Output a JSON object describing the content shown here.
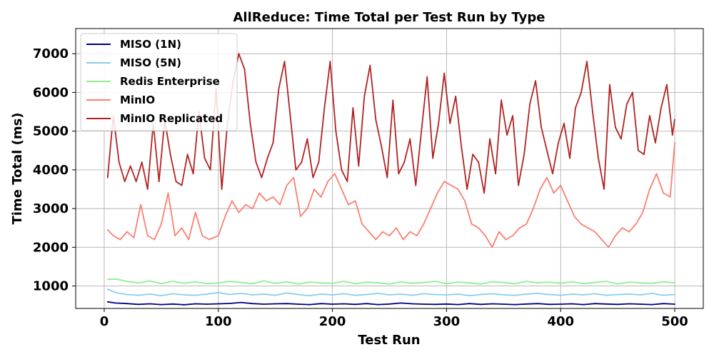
{
  "chart_data": {
    "type": "line",
    "title": "AllReduce: Time Total per Test Run by Type",
    "xlabel": "Test Run",
    "ylabel": "Time Total (ms)",
    "xlim": [
      -25,
      525
    ],
    "ylim": [
      420,
      7650
    ],
    "xticks": [
      0,
      100,
      200,
      300,
      400,
      500
    ],
    "yticks": [
      1000,
      2000,
      3000,
      4000,
      5000,
      6000,
      7000
    ],
    "x_tick_labels": [
      "0",
      "100",
      "200",
      "300",
      "400",
      "500"
    ],
    "y_tick_labels": [
      "1000",
      "2000",
      "3000",
      "4000",
      "5000",
      "6000",
      "7000"
    ],
    "grid": true,
    "legend_position": "top-left",
    "series": [
      {
        "name": "MISO (1N)",
        "color": "#000080",
        "x": [
          3,
          10,
          20,
          30,
          40,
          50,
          60,
          70,
          80,
          90,
          100,
          110,
          120,
          130,
          140,
          150,
          160,
          170,
          180,
          190,
          200,
          210,
          220,
          230,
          240,
          250,
          260,
          270,
          280,
          290,
          300,
          310,
          320,
          330,
          340,
          350,
          360,
          370,
          380,
          390,
          400,
          410,
          420,
          430,
          440,
          450,
          460,
          470,
          480,
          490,
          500
        ],
        "values": [
          590,
          560,
          545,
          525,
          540,
          520,
          535,
          515,
          540,
          530,
          540,
          550,
          575,
          545,
          530,
          540,
          545,
          530,
          520,
          545,
          530,
          540,
          525,
          545,
          520,
          535,
          560,
          540,
          530,
          525,
          535,
          520,
          545,
          525,
          540,
          530,
          520,
          535,
          545,
          525,
          530,
          540,
          520,
          545,
          535,
          525,
          540,
          530,
          520,
          545,
          530
        ]
      },
      {
        "name": "MISO (5N)",
        "color": "#87ceeb",
        "x": [
          3,
          10,
          20,
          30,
          40,
          50,
          60,
          70,
          80,
          90,
          100,
          110,
          120,
          130,
          140,
          150,
          160,
          170,
          180,
          190,
          200,
          210,
          220,
          230,
          240,
          250,
          260,
          270,
          280,
          290,
          300,
          310,
          320,
          330,
          340,
          350,
          360,
          370,
          380,
          390,
          400,
          410,
          420,
          430,
          440,
          450,
          460,
          470,
          480,
          490,
          500
        ],
        "values": [
          920,
          830,
          780,
          760,
          790,
          750,
          800,
          770,
          760,
          790,
          830,
          780,
          810,
          770,
          790,
          760,
          820,
          780,
          750,
          790,
          770,
          800,
          760,
          780,
          810,
          770,
          790,
          760,
          800,
          780,
          770,
          790,
          750,
          780,
          800,
          770,
          760,
          790,
          810,
          780,
          760,
          790,
          770,
          800,
          760,
          780,
          790,
          770,
          810,
          760,
          780
        ]
      },
      {
        "name": "Redis Enterprise",
        "color": "#90ee90",
        "x": [
          3,
          10,
          20,
          30,
          40,
          50,
          60,
          70,
          80,
          90,
          100,
          110,
          120,
          130,
          140,
          150,
          160,
          170,
          180,
          190,
          200,
          210,
          220,
          230,
          240,
          250,
          260,
          270,
          280,
          290,
          300,
          310,
          320,
          330,
          340,
          350,
          360,
          370,
          380,
          390,
          400,
          410,
          420,
          430,
          440,
          450,
          460,
          470,
          480,
          490,
          500
        ],
        "values": [
          1170,
          1180,
          1120,
          1080,
          1130,
          1060,
          1120,
          1070,
          1110,
          1060,
          1080,
          1120,
          1090,
          1060,
          1130,
          1070,
          1110,
          1050,
          1100,
          1080,
          1070,
          1120,
          1060,
          1100,
          1080,
          1050,
          1110,
          1070,
          1090,
          1120,
          1060,
          1100,
          1080,
          1050,
          1110,
          1090,
          1060,
          1120,
          1080,
          1100,
          1070,
          1110,
          1060,
          1090,
          1120,
          1050,
          1100,
          1080,
          1070,
          1110,
          1080
        ]
      },
      {
        "name": "MinIO",
        "color": "#fa8072",
        "x": [
          3,
          8,
          14,
          20,
          26,
          32,
          38,
          44,
          50,
          56,
          62,
          68,
          74,
          80,
          86,
          92,
          100,
          106,
          112,
          118,
          124,
          130,
          136,
          142,
          148,
          154,
          160,
          166,
          172,
          178,
          184,
          190,
          196,
          202,
          208,
          214,
          220,
          226,
          232,
          238,
          244,
          250,
          256,
          262,
          268,
          274,
          280,
          286,
          292,
          298,
          304,
          310,
          316,
          322,
          328,
          334,
          340,
          346,
          352,
          358,
          364,
          370,
          376,
          382,
          388,
          394,
          400,
          406,
          412,
          418,
          424,
          430,
          436,
          442,
          448,
          454,
          460,
          466,
          472,
          478,
          484,
          490,
          496,
          500
        ],
        "values": [
          2450,
          2300,
          2200,
          2400,
          2250,
          3100,
          2300,
          2200,
          2600,
          3400,
          2300,
          2500,
          2200,
          2900,
          2300,
          2200,
          2300,
          2800,
          3200,
          2900,
          3100,
          3000,
          3400,
          3200,
          3300,
          3100,
          3600,
          3800,
          2800,
          3000,
          3500,
          3300,
          3700,
          3900,
          3500,
          3100,
          3200,
          2600,
          2400,
          2200,
          2400,
          2300,
          2500,
          2200,
          2400,
          2300,
          2600,
          3000,
          3400,
          3700,
          3600,
          3500,
          3200,
          2600,
          2500,
          2300,
          2000,
          2400,
          2200,
          2300,
          2500,
          2600,
          3000,
          3500,
          3800,
          3400,
          3600,
          3200,
          2800,
          2600,
          2500,
          2400,
          2200,
          2000,
          2300,
          2500,
          2400,
          2600,
          2900,
          3500,
          3900,
          3400,
          3300,
          4700
        ]
      },
      {
        "name": "MinIO Replicated",
        "color": "#b22222",
        "x": [
          3,
          8,
          13,
          18,
          23,
          28,
          33,
          38,
          43,
          48,
          53,
          58,
          63,
          68,
          73,
          78,
          83,
          88,
          93,
          98,
          103,
          108,
          113,
          118,
          123,
          128,
          133,
          138,
          143,
          148,
          153,
          158,
          163,
          168,
          173,
          178,
          183,
          188,
          193,
          198,
          203,
          208,
          213,
          218,
          223,
          228,
          233,
          238,
          243,
          248,
          253,
          258,
          263,
          268,
          273,
          278,
          283,
          288,
          293,
          298,
          303,
          308,
          313,
          318,
          323,
          328,
          333,
          338,
          343,
          348,
          353,
          358,
          363,
          368,
          373,
          378,
          383,
          388,
          393,
          398,
          403,
          408,
          413,
          418,
          423,
          428,
          433,
          438,
          443,
          448,
          453,
          458,
          463,
          468,
          473,
          478,
          483,
          488,
          493,
          498,
          500
        ],
        "values": [
          3800,
          5400,
          4200,
          3700,
          4100,
          3700,
          4200,
          3500,
          5200,
          3700,
          5300,
          4400,
          3700,
          3600,
          4400,
          3900,
          5500,
          4300,
          4000,
          6100,
          3500,
          5200,
          6300,
          7000,
          6600,
          5200,
          4200,
          3800,
          4300,
          4700,
          6100,
          6800,
          5400,
          4000,
          4200,
          4800,
          3800,
          4200,
          5600,
          6800,
          5000,
          4000,
          3700,
          5600,
          4100,
          5900,
          6700,
          5300,
          4600,
          3800,
          5800,
          3900,
          4200,
          4800,
          3600,
          5000,
          6400,
          4300,
          5200,
          6500,
          5200,
          5900,
          4600,
          3500,
          4400,
          4200,
          3400,
          4800,
          3900,
          5800,
          4900,
          5400,
          3600,
          4400,
          5700,
          6300,
          5100,
          4500,
          3900,
          4700,
          5200,
          4300,
          5600,
          6000,
          6800,
          5500,
          4300,
          3500,
          6200,
          5100,
          4800,
          5700,
          6000,
          4500,
          4400,
          5400,
          4700,
          5600,
          6200,
          4900,
          5300
        ]
      }
    ]
  }
}
